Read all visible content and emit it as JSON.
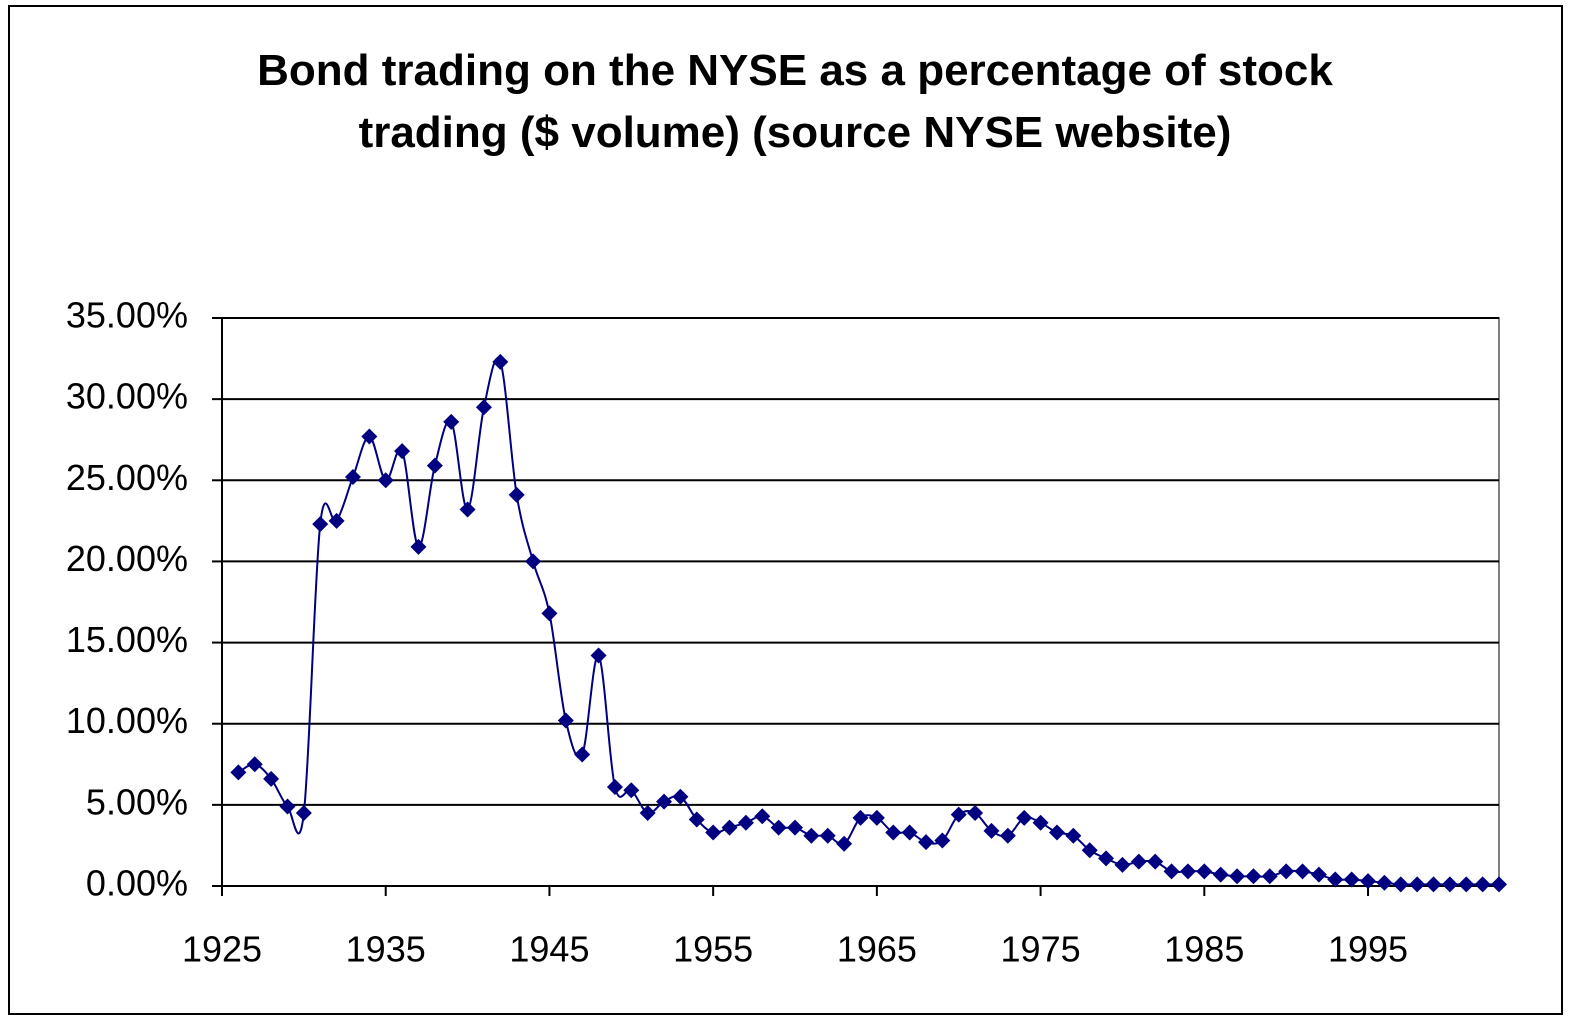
{
  "chart_data": {
    "type": "line",
    "title": "Bond trading on the NYSE as a percentage of stock trading ($ volume) (source NYSE website)",
    "x": [
      1926,
      1927,
      1928,
      1929,
      1930,
      1931,
      1932,
      1933,
      1934,
      1935,
      1936,
      1937,
      1938,
      1939,
      1940,
      1941,
      1942,
      1943,
      1944,
      1945,
      1946,
      1947,
      1948,
      1949,
      1950,
      1951,
      1952,
      1953,
      1954,
      1955,
      1956,
      1957,
      1958,
      1959,
      1960,
      1961,
      1962,
      1963,
      1964,
      1965,
      1966,
      1967,
      1968,
      1969,
      1970,
      1971,
      1972,
      1973,
      1974,
      1975,
      1976,
      1977,
      1978,
      1979,
      1980,
      1981,
      1982,
      1983,
      1984,
      1985,
      1986,
      1987,
      1988,
      1989,
      1990,
      1991,
      1992,
      1993,
      1994,
      1995,
      1996,
      1997,
      1998,
      1999,
      2000,
      2001,
      2002,
      2003
    ],
    "series": [
      {
        "color": "#000080",
        "values": [
          7.0,
          7.5,
          6.6,
          4.9,
          4.5,
          22.3,
          22.5,
          25.2,
          27.7,
          25.0,
          26.8,
          20.9,
          25.9,
          28.6,
          23.2,
          29.5,
          32.3,
          24.1,
          20.0,
          16.8,
          10.2,
          8.1,
          14.2,
          6.1,
          5.9,
          4.5,
          5.2,
          5.5,
          4.1,
          3.3,
          3.6,
          3.9,
          4.3,
          3.6,
          3.6,
          3.1,
          3.1,
          2.6,
          4.2,
          4.2,
          3.3,
          3.3,
          2.7,
          2.8,
          4.4,
          4.5,
          3.4,
          3.1,
          4.2,
          3.9,
          3.3,
          3.1,
          2.2,
          1.7,
          1.3,
          1.5,
          1.5,
          0.9,
          0.9,
          0.9,
          0.7,
          0.6,
          0.6,
          0.6,
          0.9,
          0.9,
          0.7,
          0.4,
          0.4,
          0.3,
          0.2,
          0.1,
          0.1,
          0.1,
          0.1,
          0.1,
          0.1,
          0.1
        ]
      }
    ],
    "xlim": [
      1925,
      2003
    ],
    "xticks": [
      1925,
      1935,
      1945,
      1955,
      1965,
      1975,
      1985,
      1995
    ],
    "ylim": [
      0,
      35
    ],
    "yticks": [
      {
        "value": 0,
        "label": "0.00%"
      },
      {
        "value": 5,
        "label": "5.00%"
      },
      {
        "value": 10,
        "label": "10.00%"
      },
      {
        "value": 15,
        "label": "15.00%"
      },
      {
        "value": 20,
        "label": "20.00%"
      },
      {
        "value": 25,
        "label": "25.00%"
      },
      {
        "value": 30,
        "label": "30.00%"
      },
      {
        "value": 35,
        "label": "35.00%"
      }
    ],
    "grid": true,
    "smooth": true,
    "markers": "diamond"
  }
}
